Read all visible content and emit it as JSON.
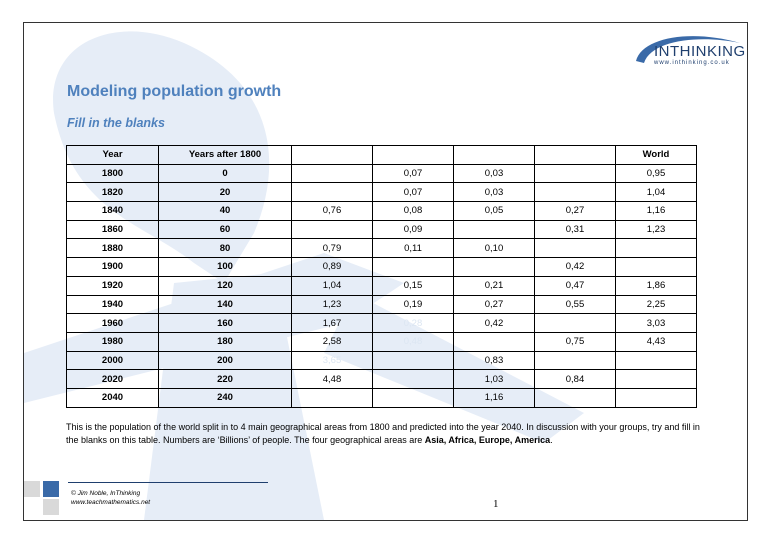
{
  "logo": {
    "name": "INTHINKING",
    "url": "www.inthinking.co.uk"
  },
  "title": "Modeling population growth",
  "subtitle": "Fill in the blanks",
  "table": {
    "headers": [
      "Year",
      "Years after 1800",
      "",
      "",
      "",
      "",
      "World"
    ],
    "rows": [
      [
        "1800",
        "0",
        "",
        "0,07",
        "0,03",
        "",
        "0,95"
      ],
      [
        "1820",
        "20",
        "",
        "0,07",
        "0,03",
        "",
        "1,04"
      ],
      [
        "1840",
        "40",
        "0,76",
        "0,08",
        "0,05",
        "0,27",
        "1,16"
      ],
      [
        "1860",
        "60",
        "",
        "0,09",
        "",
        "0,31",
        "1,23"
      ],
      [
        "1880",
        "80",
        "0,79",
        "0,11",
        "0,10",
        "",
        ""
      ],
      [
        "1900",
        "100",
        "0,89",
        "",
        "",
        "0,42",
        ""
      ],
      [
        "1920",
        "120",
        "1,04",
        "0,15",
        "0,21",
        "0,47",
        "1,86"
      ],
      [
        "1940",
        "140",
        "1,23",
        "0,19",
        "0,27",
        "0,55",
        "2,25"
      ],
      [
        "1960",
        "160",
        "1,67",
        "0,28",
        "0,42",
        "",
        "3,03"
      ],
      [
        "1980",
        "180",
        "2,58",
        "0,48",
        "",
        "0,75",
        "4,43"
      ],
      [
        "2000",
        "200",
        "3,65",
        "",
        "0,83",
        "",
        ""
      ],
      [
        "2020",
        "220",
        "4,48",
        "",
        "1,03",
        "0,84",
        ""
      ],
      [
        "2040",
        "240",
        "",
        "",
        "1,16",
        "",
        ""
      ]
    ]
  },
  "paragraph": {
    "text": "This is the population of the world split in to 4 main geographical areas from 1800 and predicted into the year 2040. In discussion with your groups, try and fill in the blanks on this table. Numbers are ‘Billions’ of people. The four geographical areas are ",
    "areas": "Asia, Africa, Europe, America",
    "end": "."
  },
  "footer": {
    "credit_line1": "© Jim Noble, InThinking",
    "credit_line2": "www.teachmathematics.net",
    "page_number": "1"
  },
  "colors": {
    "accent": "#4f81bd",
    "watermark": "#dce6f2",
    "navy": "#1f3f6e"
  }
}
